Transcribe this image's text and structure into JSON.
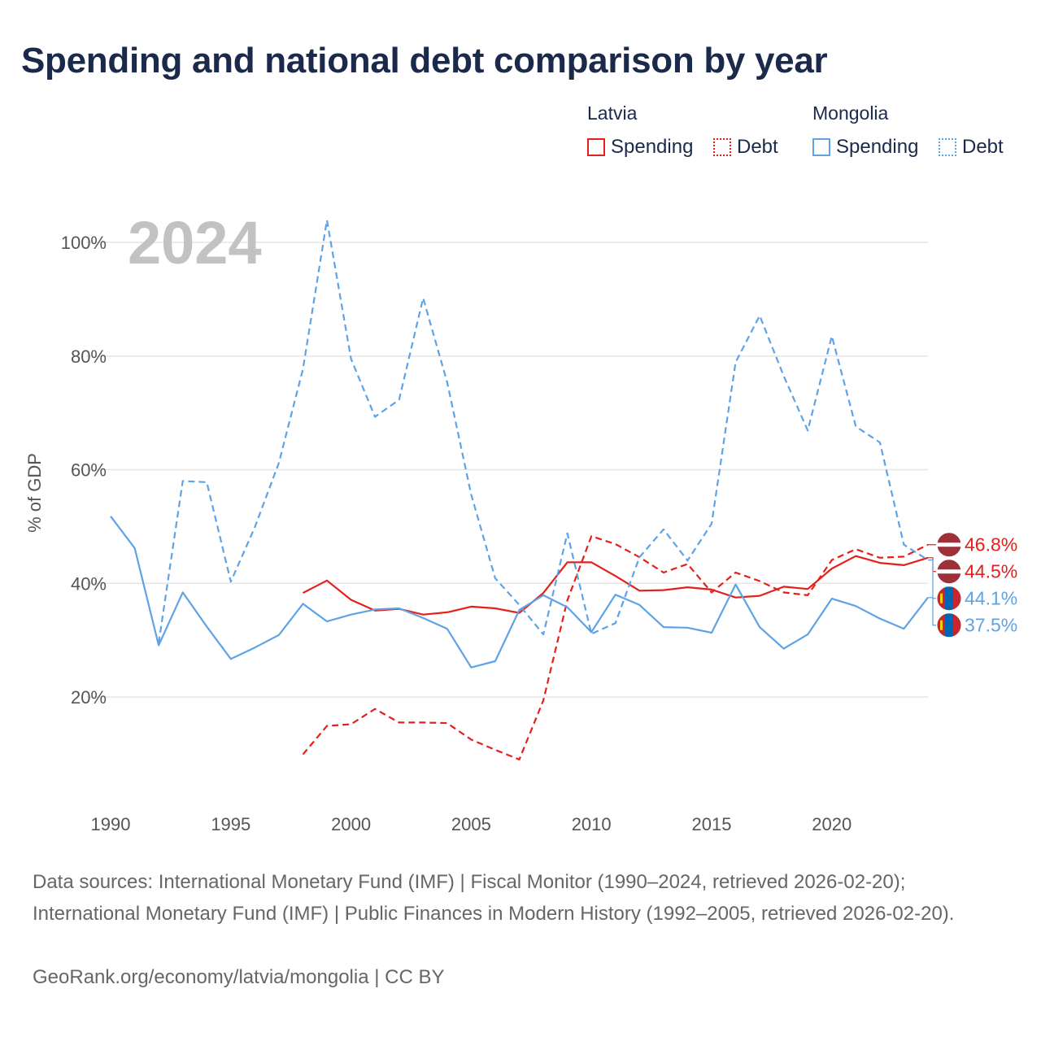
{
  "title": "Spending and national debt comparison by year",
  "legend": {
    "groups": [
      {
        "name": "Latvia",
        "items": [
          "Spending",
          "Debt"
        ]
      },
      {
        "name": "Mongolia",
        "items": [
          "Spending",
          "Debt"
        ]
      }
    ]
  },
  "colors": {
    "latvia": "#e5201c",
    "mongolia": "#5ea3e6",
    "grid": "#e6e6e6",
    "year_label": "#c2c2c2"
  },
  "footer": {
    "sources": "Data sources: International Monetary Fund (IMF) | Fiscal Monitor (1990–2024, retrieved 2026-02-20); International Monetary Fund (IMF) | Public Finances in Modern History (1992–2005, retrieved 2026-02-20).",
    "credit": "GeoRank.org/economy/latvia/mongolia | CC BY"
  },
  "chart_data": {
    "type": "line",
    "year_label": "2024",
    "ylabel": "% of GDP",
    "xlabel": "",
    "xlim": [
      1990,
      2024
    ],
    "ylim": [
      0,
      110
    ],
    "x_ticks": [
      1990,
      1995,
      2000,
      2005,
      2010,
      2015,
      2020
    ],
    "y_ticks": [
      20,
      40,
      60,
      80,
      100
    ],
    "y_tick_labels": [
      "20%",
      "40%",
      "60%",
      "80%",
      "100%"
    ],
    "grid": true,
    "legend_position": "top-right",
    "series": [
      {
        "country": "Latvia",
        "name": "Spending",
        "style": "solid",
        "color": "#e5201c",
        "x": [
          1998,
          1999,
          2000,
          2001,
          2002,
          2003,
          2004,
          2005,
          2006,
          2007,
          2008,
          2009,
          2010,
          2011,
          2012,
          2013,
          2014,
          2015,
          2016,
          2017,
          2018,
          2019,
          2020,
          2021,
          2022,
          2023,
          2024
        ],
        "values": [
          38.3,
          40.5,
          37.1,
          35.2,
          35.5,
          34.5,
          34.9,
          35.9,
          35.6,
          34.8,
          38.3,
          43.7,
          43.7,
          41.3,
          38.7,
          38.8,
          39.3,
          38.9,
          37.5,
          37.8,
          39.4,
          39.0,
          42.6,
          44.8,
          43.6,
          43.2,
          44.5
        ],
        "end_label": "44.5%"
      },
      {
        "country": "Latvia",
        "name": "Debt",
        "style": "dashed",
        "color": "#e5201c",
        "x": [
          1998,
          1999,
          2000,
          2001,
          2002,
          2003,
          2004,
          2005,
          2006,
          2007,
          2008,
          2009,
          2010,
          2011,
          2012,
          2013,
          2014,
          2015,
          2016,
          2017,
          2018,
          2019,
          2020,
          2021,
          2022,
          2023,
          2024
        ],
        "values": [
          9.9,
          14.9,
          15.2,
          17.9,
          15.5,
          15.5,
          15.4,
          12.5,
          10.7,
          9.0,
          19.4,
          37.0,
          48.3,
          46.9,
          44.6,
          41.9,
          43.4,
          38.4,
          41.9,
          40.4,
          38.4,
          37.9,
          44.1,
          46.0,
          44.5,
          44.7,
          46.8
        ],
        "end_label": "46.8%"
      },
      {
        "country": "Mongolia",
        "name": "Spending",
        "style": "solid",
        "color": "#5ea3e6",
        "x": [
          1990,
          1991,
          1992,
          1993,
          1994,
          1995,
          1996,
          1997,
          1998,
          1999,
          2000,
          2001,
          2002,
          2003,
          2004,
          2005,
          2006,
          2007,
          2008,
          2009,
          2010,
          2011,
          2012,
          2013,
          2014,
          2015,
          2016,
          2017,
          2018,
          2019,
          2020,
          2021,
          2022,
          2023,
          2024
        ],
        "values": [
          51.8,
          46.2,
          29.1,
          38.4,
          32.4,
          26.7,
          28.7,
          30.9,
          36.4,
          33.3,
          34.5,
          35.4,
          35.6,
          33.9,
          32.0,
          25.2,
          26.3,
          35.3,
          37.9,
          35.8,
          31.4,
          38.0,
          36.2,
          32.3,
          32.2,
          31.3,
          39.8,
          32.3,
          28.5,
          31.0,
          37.3,
          36.0,
          33.8,
          32.0,
          37.5
        ],
        "end_label": "37.5%"
      },
      {
        "country": "Mongolia",
        "name": "Debt",
        "style": "dashed",
        "color": "#5ea3e6",
        "x": [
          1992,
          1993,
          1994,
          1995,
          1996,
          1997,
          1998,
          1999,
          2000,
          2001,
          2002,
          2003,
          2004,
          2005,
          2006,
          2007,
          2008,
          2009,
          2010,
          2011,
          2012,
          2013,
          2014,
          2015,
          2016,
          2017,
          2018,
          2019,
          2020,
          2021,
          2022,
          2023,
          2024
        ],
        "values": [
          29.5,
          58.0,
          57.8,
          40.3,
          49.9,
          61.2,
          77.7,
          103.9,
          79.5,
          69.3,
          72.3,
          90.2,
          75.4,
          55.6,
          40.9,
          36.2,
          31.0,
          48.8,
          31.1,
          33.0,
          44.6,
          49.5,
          44.0,
          50.5,
          78.9,
          87.1,
          76.5,
          66.9,
          83.5,
          67.6,
          64.8,
          46.8,
          44.1
        ],
        "end_label": "44.1%"
      }
    ]
  }
}
